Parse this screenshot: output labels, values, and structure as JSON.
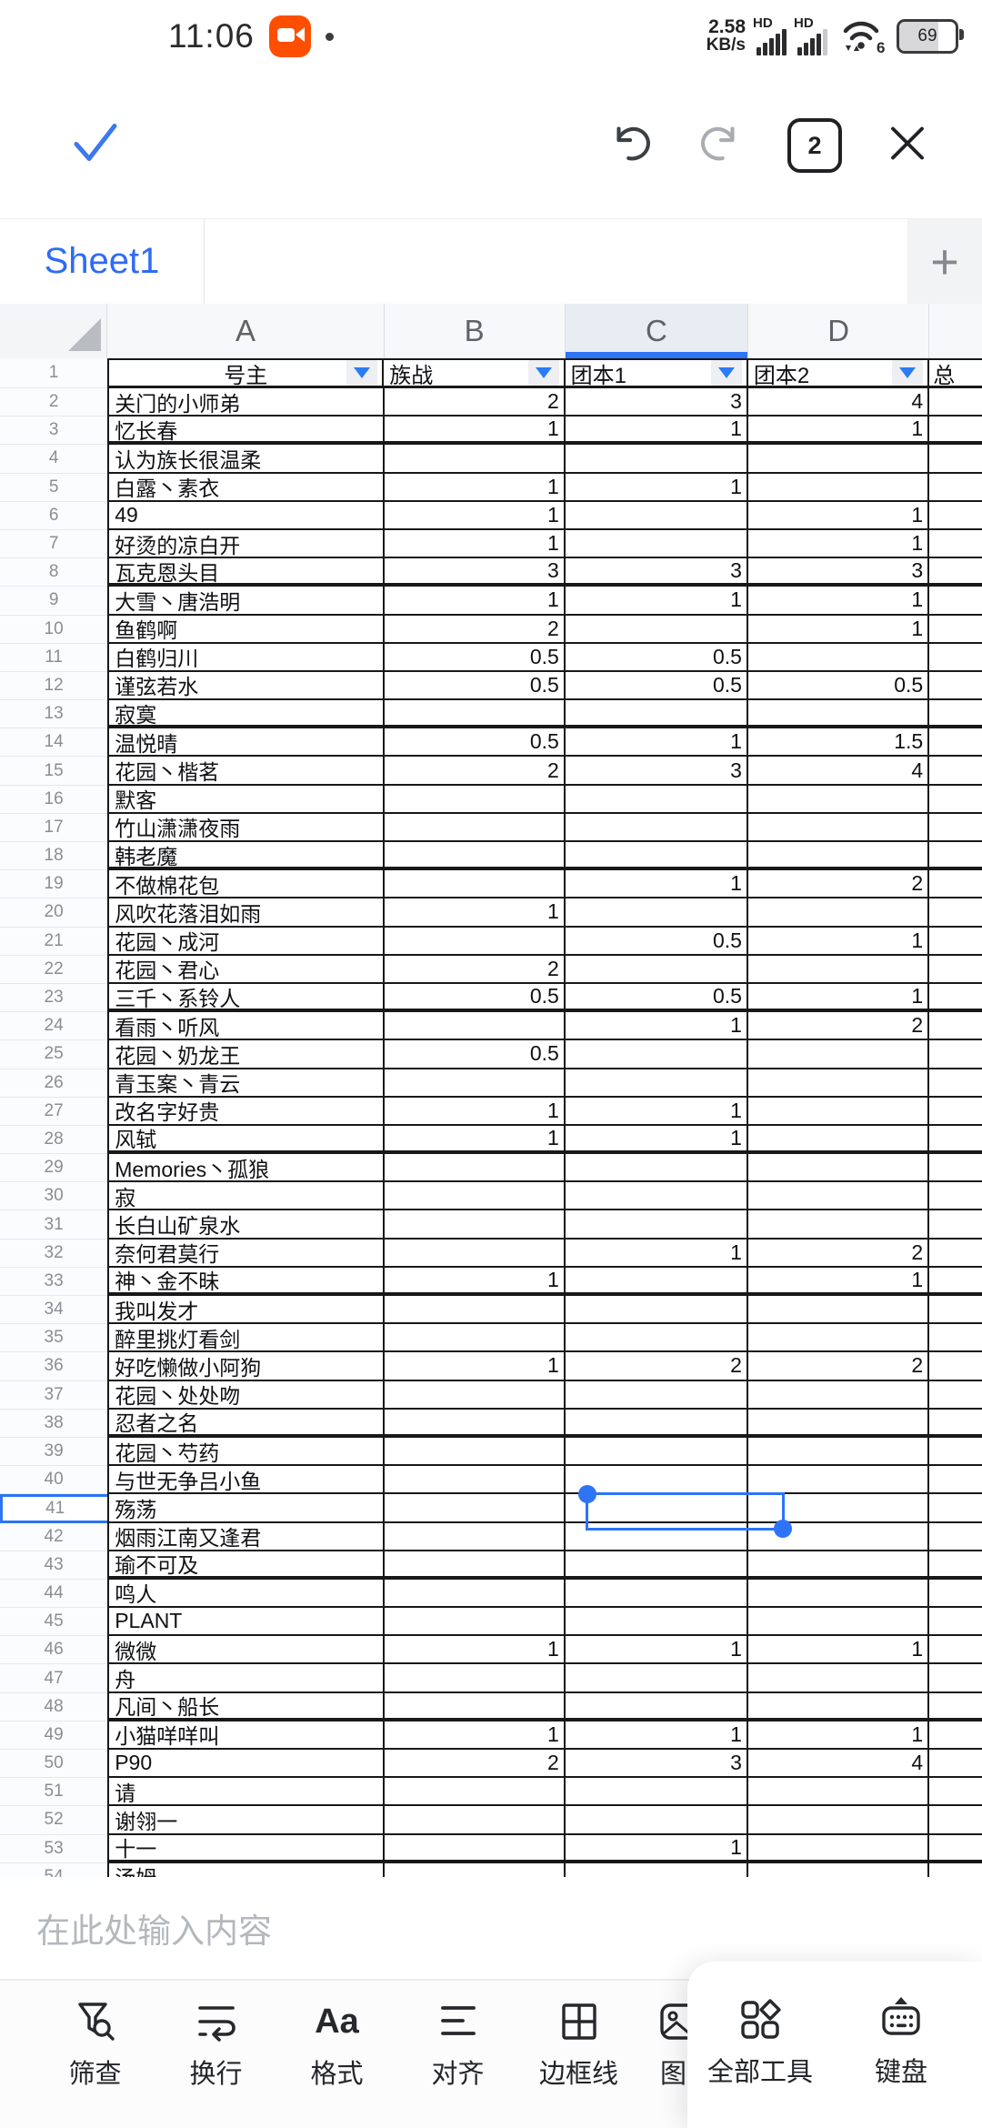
{
  "status_bar": {
    "time": "11:06",
    "net_speed_value": "2.58",
    "net_speed_unit": "KB/s",
    "sim1_label": "HD",
    "sim2_label": "HD",
    "wifi_label": "6",
    "battery_percent": "69"
  },
  "top_toolbar": {
    "window_count": "2"
  },
  "tab_bar": {
    "active_sheet": "Sheet1",
    "add_label": "+"
  },
  "accent_color": "#2d74f6",
  "sheet": {
    "column_letters": [
      "A",
      "B",
      "C",
      "D"
    ],
    "header_row": {
      "name": "号主",
      "b": "族战",
      "c": "团本1",
      "d": "团本2",
      "e": "总"
    },
    "selected": {
      "row": 41,
      "column": "C"
    },
    "rows": [
      {
        "n": 2,
        "name": "关门的小师弟",
        "b": "2",
        "c": "3",
        "d": "4"
      },
      {
        "n": 3,
        "name": "忆长春",
        "b": "1",
        "c": "1",
        "d": "1"
      },
      {
        "n": 4,
        "name": "认为族长很温柔",
        "b": "",
        "c": "",
        "d": ""
      },
      {
        "n": 5,
        "name": "白露丶素衣",
        "b": "1",
        "c": "1",
        "d": ""
      },
      {
        "n": 6,
        "name": "49",
        "b": "1",
        "c": "",
        "d": "1"
      },
      {
        "n": 7,
        "name": "好烫的凉白开",
        "b": "1",
        "c": "",
        "d": "1"
      },
      {
        "n": 8,
        "name": "瓦克恩头目",
        "b": "3",
        "c": "3",
        "d": "3"
      },
      {
        "n": 9,
        "name": "大雪丶唐浩明",
        "b": "1",
        "c": "1",
        "d": "1"
      },
      {
        "n": 10,
        "name": "鱼鹤啊",
        "b": "2",
        "c": "",
        "d": "1"
      },
      {
        "n": 11,
        "name": "白鹤归川",
        "b": "0.5",
        "c": "0.5",
        "d": ""
      },
      {
        "n": 12,
        "name": "谨弦若水",
        "b": "0.5",
        "c": "0.5",
        "d": "0.5"
      },
      {
        "n": 13,
        "name": "寂寞",
        "b": "",
        "c": "",
        "d": ""
      },
      {
        "n": 14,
        "name": "温悦晴",
        "b": "0.5",
        "c": "1",
        "d": "1.5"
      },
      {
        "n": 15,
        "name": "花园丶楷茗",
        "b": "2",
        "c": "3",
        "d": "4"
      },
      {
        "n": 16,
        "name": "默客",
        "b": "",
        "c": "",
        "d": ""
      },
      {
        "n": 17,
        "name": "竹山潇潇夜雨",
        "b": "",
        "c": "",
        "d": ""
      },
      {
        "n": 18,
        "name": "韩老魔",
        "b": "",
        "c": "",
        "d": ""
      },
      {
        "n": 19,
        "name": "不做棉花包",
        "b": "",
        "c": "1",
        "d": "2"
      },
      {
        "n": 20,
        "name": "风吹花落泪如雨",
        "b": "1",
        "c": "",
        "d": ""
      },
      {
        "n": 21,
        "name": "花园丶成河",
        "b": "",
        "c": "0.5",
        "d": "1"
      },
      {
        "n": 22,
        "name": "花园丶君心",
        "b": "2",
        "c": "",
        "d": ""
      },
      {
        "n": 23,
        "name": "三千丶系铃人",
        "b": "0.5",
        "c": "0.5",
        "d": "1"
      },
      {
        "n": 24,
        "name": "看雨丶听风",
        "b": "",
        "c": "1",
        "d": "2"
      },
      {
        "n": 25,
        "name": "花园丶奶龙王",
        "b": "0.5",
        "c": "",
        "d": ""
      },
      {
        "n": 26,
        "name": "青玉案丶青云",
        "b": "",
        "c": "",
        "d": ""
      },
      {
        "n": 27,
        "name": "改名字好贵",
        "b": "1",
        "c": "1",
        "d": ""
      },
      {
        "n": 28,
        "name": "风轼",
        "b": "1",
        "c": "1",
        "d": ""
      },
      {
        "n": 29,
        "name": "Memories丶孤狼",
        "b": "",
        "c": "",
        "d": ""
      },
      {
        "n": 30,
        "name": "寂",
        "b": "",
        "c": "",
        "d": ""
      },
      {
        "n": 31,
        "name": "长白山矿泉水",
        "b": "",
        "c": "",
        "d": ""
      },
      {
        "n": 32,
        "name": "奈何君莫行",
        "b": "",
        "c": "1",
        "d": "2"
      },
      {
        "n": 33,
        "name": "神丶金不昧",
        "b": "1",
        "c": "",
        "d": "1"
      },
      {
        "n": 34,
        "name": "我叫发才",
        "b": "",
        "c": "",
        "d": ""
      },
      {
        "n": 35,
        "name": "醉里挑灯看剑",
        "b": "",
        "c": "",
        "d": ""
      },
      {
        "n": 36,
        "name": "好吃懒做小阿狗",
        "b": "1",
        "c": "2",
        "d": "2"
      },
      {
        "n": 37,
        "name": "花园丶处处吻",
        "b": "",
        "c": "",
        "d": ""
      },
      {
        "n": 38,
        "name": "忍者之名",
        "b": "",
        "c": "",
        "d": ""
      },
      {
        "n": 39,
        "name": "花园丶芍药",
        "b": "",
        "c": "",
        "d": ""
      },
      {
        "n": 40,
        "name": "与世无争吕小鱼",
        "b": "",
        "c": "",
        "d": ""
      },
      {
        "n": 41,
        "name": "殇荡",
        "b": "",
        "c": "",
        "d": ""
      },
      {
        "n": 42,
        "name": "烟雨江南又逢君",
        "b": "",
        "c": "",
        "d": ""
      },
      {
        "n": 43,
        "name": "瑜不可及",
        "b": "",
        "c": "",
        "d": ""
      },
      {
        "n": 44,
        "name": "鸣人",
        "b": "",
        "c": "",
        "d": ""
      },
      {
        "n": 45,
        "name": "PLANT",
        "b": "",
        "c": "",
        "d": ""
      },
      {
        "n": 46,
        "name": "微微",
        "b": "1",
        "c": "1",
        "d": "1"
      },
      {
        "n": 47,
        "name": "舟",
        "b": "",
        "c": "",
        "d": ""
      },
      {
        "n": 48,
        "name": "凡间丶船长",
        "b": "",
        "c": "",
        "d": ""
      },
      {
        "n": 49,
        "name": "小猫咩咩叫",
        "b": "1",
        "c": "1",
        "d": "1"
      },
      {
        "n": 50,
        "name": "P90",
        "b": "2",
        "c": "3",
        "d": "4"
      },
      {
        "n": 51,
        "name": "请",
        "b": "",
        "c": "",
        "d": ""
      },
      {
        "n": 52,
        "name": "谢翎一",
        "b": "",
        "c": "",
        "d": ""
      },
      {
        "n": 53,
        "name": "十一",
        "b": "",
        "c": "1",
        "d": ""
      },
      {
        "n": 54,
        "name": "汤姆",
        "b": "",
        "c": "",
        "d": ""
      }
    ]
  },
  "input_bar": {
    "placeholder": "在此处输入内容"
  },
  "bottom_toolbar": {
    "scroll_items": [
      {
        "icon": "filter-search-icon",
        "label": "筛查"
      },
      {
        "icon": "wrap-text-icon",
        "label": "换行"
      },
      {
        "icon": "format-icon",
        "label": "格式"
      },
      {
        "icon": "align-icon",
        "label": "对齐"
      },
      {
        "icon": "borders-icon",
        "label": "边框线"
      },
      {
        "icon": "image-icon",
        "label": "图"
      }
    ],
    "all_tools_label": "全部工具",
    "keyboard_label": "键盘"
  }
}
